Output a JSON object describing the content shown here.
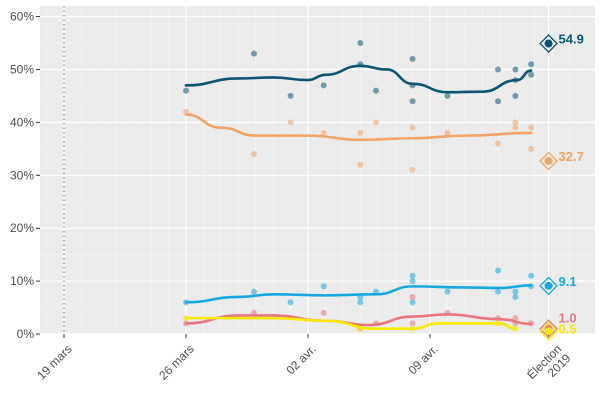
{
  "chart_data": {
    "type": "line",
    "title": "",
    "xlabel": "",
    "ylabel": "",
    "x_unit": "days since 19 mars",
    "xlim": [
      -6,
      30.5
    ],
    "ylim": [
      0,
      62
    ],
    "grid": true,
    "y_ticks": [
      0,
      10,
      20,
      30,
      40,
      50,
      60
    ],
    "y_tick_labels": [
      "0%",
      "10%",
      "20%",
      "30%",
      "40%",
      "50%",
      "60%"
    ],
    "x_ticks": [
      0,
      7,
      14,
      21,
      27.8
    ],
    "x_tick_labels": [
      "19 mars",
      "26 mars",
      "02 avr.",
      "09 avr.",
      "Élection\n2019"
    ],
    "reference_line_x": 0,
    "series": [
      {
        "name": "dark-blue",
        "color": "#0b5573",
        "points": [
          [
            7,
            46
          ],
          [
            10.9,
            53
          ],
          [
            13,
            45
          ],
          [
            14.9,
            47
          ],
          [
            17,
            55
          ],
          [
            17,
            51
          ],
          [
            17.9,
            46
          ],
          [
            20,
            52
          ],
          [
            20,
            44
          ],
          [
            20,
            47
          ],
          [
            22,
            45
          ],
          [
            24.9,
            50
          ],
          [
            24.9,
            44
          ],
          [
            25.9,
            50
          ],
          [
            25.9,
            45
          ],
          [
            25.9,
            48
          ],
          [
            26.8,
            51
          ],
          [
            26.8,
            49
          ]
        ],
        "trend": [
          [
            7,
            47
          ],
          [
            10,
            48.3
          ],
          [
            12,
            48.5
          ],
          [
            14,
            48
          ],
          [
            15,
            49
          ],
          [
            17,
            50.7
          ],
          [
            18.5,
            50
          ],
          [
            20,
            47.3
          ],
          [
            22,
            45.7
          ],
          [
            24,
            45.8
          ],
          [
            26,
            48
          ],
          [
            26.8,
            49.8
          ]
        ],
        "final": 54.9,
        "final_label": "54.9"
      },
      {
        "name": "orange",
        "color": "#f2a365",
        "points": [
          [
            7,
            42
          ],
          [
            10.9,
            34
          ],
          [
            13,
            40
          ],
          [
            14.9,
            38
          ],
          [
            17,
            38
          ],
          [
            17,
            32
          ],
          [
            17.9,
            40
          ],
          [
            20,
            39
          ],
          [
            20,
            31
          ],
          [
            22,
            38
          ],
          [
            24.9,
            36
          ],
          [
            25.9,
            40
          ],
          [
            25.9,
            39
          ],
          [
            26.8,
            39
          ],
          [
            26.8,
            35
          ]
        ],
        "trend": [
          [
            7,
            41.5
          ],
          [
            9,
            39
          ],
          [
            11,
            37.5
          ],
          [
            14,
            37.5
          ],
          [
            17,
            36.7
          ],
          [
            20,
            37
          ],
          [
            23,
            37.5
          ],
          [
            26.8,
            38
          ]
        ],
        "final": 32.7,
        "final_label": "32.7"
      },
      {
        "name": "light-blue",
        "color": "#18a8e0",
        "points": [
          [
            7,
            6
          ],
          [
            10.9,
            8
          ],
          [
            13,
            6
          ],
          [
            14.9,
            9
          ],
          [
            17,
            6
          ],
          [
            17,
            7
          ],
          [
            17.9,
            8
          ],
          [
            20,
            11
          ],
          [
            20,
            10
          ],
          [
            20,
            6
          ],
          [
            22,
            8
          ],
          [
            24.9,
            12
          ],
          [
            24.9,
            8
          ],
          [
            25.9,
            8
          ],
          [
            25.9,
            7
          ],
          [
            26.8,
            11
          ],
          [
            26.8,
            9
          ]
        ],
        "trend": [
          [
            7,
            6
          ],
          [
            10,
            7
          ],
          [
            12,
            7.5
          ],
          [
            15,
            7.3
          ],
          [
            17.9,
            7.5
          ],
          [
            20,
            9
          ],
          [
            23,
            8.8
          ],
          [
            25,
            8.7
          ],
          [
            26.8,
            9.2
          ]
        ],
        "final": 9.1,
        "final_label": "9.1"
      },
      {
        "name": "red",
        "color": "#e8767c",
        "points": [
          [
            7,
            2
          ],
          [
            10.9,
            4
          ],
          [
            14.9,
            4
          ],
          [
            17,
            1
          ],
          [
            17.9,
            2
          ],
          [
            20,
            7
          ],
          [
            20,
            2
          ],
          [
            22,
            4
          ],
          [
            24.9,
            3
          ],
          [
            25.9,
            3
          ],
          [
            25.9,
            2
          ],
          [
            26.8,
            2
          ]
        ],
        "trend": [
          [
            7,
            2
          ],
          [
            10,
            3.5
          ],
          [
            12,
            3.5
          ],
          [
            15,
            2.5
          ],
          [
            17.5,
            1.7
          ],
          [
            20,
            3.3
          ],
          [
            22,
            3.7
          ],
          [
            25,
            2.8
          ],
          [
            26.8,
            1.9
          ]
        ],
        "final": 1.0,
        "final_label": "1.0"
      },
      {
        "name": "yellow",
        "color": "#f5ea00",
        "points": [
          [
            7,
            3
          ],
          [
            17,
            1
          ],
          [
            20,
            1
          ],
          [
            24.9,
            2
          ],
          [
            25.9,
            1
          ]
        ],
        "trend": [
          [
            7,
            3
          ],
          [
            12,
            3
          ],
          [
            15,
            2.5
          ],
          [
            17.9,
            1
          ],
          [
            20,
            1
          ],
          [
            21.5,
            2
          ],
          [
            25,
            2
          ],
          [
            25.9,
            1
          ]
        ],
        "final": 0.5,
        "final_label": "0.5"
      }
    ]
  }
}
